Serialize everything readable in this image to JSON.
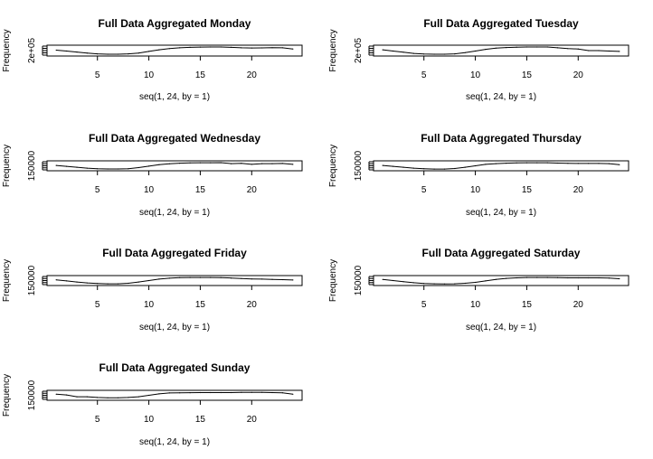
{
  "chart_data": [
    {
      "type": "line",
      "title": "Full Data Aggregated Monday",
      "xlabel": "seq(1, 24, by = 1)",
      "ylabel": "Frequency",
      "ytick_text": "2e+05",
      "xlim": [
        1,
        24
      ],
      "xticks": [
        5,
        10,
        15,
        20
      ],
      "x": [
        1,
        2,
        3,
        4,
        5,
        6,
        7,
        8,
        9,
        10,
        11,
        12,
        13,
        14,
        15,
        16,
        17,
        18,
        19,
        20,
        21,
        22,
        23,
        24
      ],
      "values": [
        0.55,
        0.45,
        0.32,
        0.2,
        0.1,
        0.05,
        0.05,
        0.1,
        0.2,
        0.4,
        0.6,
        0.75,
        0.85,
        0.9,
        0.93,
        0.95,
        0.95,
        0.9,
        0.85,
        0.82,
        0.83,
        0.86,
        0.85,
        0.7
      ]
    },
    {
      "type": "line",
      "title": "Full Data Aggregated Tuesday",
      "xlabel": "seq(1, 24, by = 1)",
      "ylabel": "Frequency",
      "ytick_text": "2e+05",
      "xlim": [
        1,
        24
      ],
      "xticks": [
        5,
        10,
        15,
        20
      ],
      "x": [
        1,
        2,
        3,
        4,
        5,
        6,
        7,
        8,
        9,
        10,
        11,
        12,
        13,
        14,
        15,
        16,
        17,
        18,
        19,
        20,
        21,
        22,
        23,
        24
      ],
      "values": [
        0.6,
        0.45,
        0.3,
        0.15,
        0.08,
        0.05,
        0.05,
        0.1,
        0.25,
        0.45,
        0.65,
        0.8,
        0.88,
        0.92,
        0.95,
        0.95,
        0.95,
        0.85,
        0.75,
        0.7,
        0.5,
        0.5,
        0.45,
        0.4
      ]
    },
    {
      "type": "line",
      "title": "Full Data Aggregated Wednesday",
      "xlabel": "seq(1, 24, by = 1)",
      "ylabel": "Frequency",
      "ytick_text": "150000",
      "xlim": [
        1,
        24
      ],
      "xticks": [
        5,
        10,
        15,
        20
      ],
      "x": [
        1,
        2,
        3,
        4,
        5,
        6,
        7,
        8,
        9,
        10,
        11,
        12,
        13,
        14,
        15,
        16,
        17,
        18,
        19,
        20,
        21,
        22,
        23,
        24
      ],
      "values": [
        0.55,
        0.42,
        0.3,
        0.18,
        0.1,
        0.06,
        0.06,
        0.1,
        0.25,
        0.45,
        0.65,
        0.78,
        0.86,
        0.9,
        0.92,
        0.93,
        0.94,
        0.8,
        0.85,
        0.7,
        0.8,
        0.8,
        0.82,
        0.7
      ]
    },
    {
      "type": "line",
      "title": "Full Data Aggregated Thursday",
      "xlabel": "seq(1, 24, by = 1)",
      "ylabel": "Frequency",
      "ytick_text": "150000",
      "xlim": [
        1,
        24
      ],
      "xticks": [
        5,
        10,
        15,
        20
      ],
      "x": [
        1,
        2,
        3,
        4,
        5,
        6,
        7,
        8,
        9,
        10,
        11,
        12,
        13,
        14,
        15,
        16,
        17,
        18,
        19,
        20,
        21,
        22,
        23,
        24
      ],
      "values": [
        0.55,
        0.42,
        0.3,
        0.18,
        0.1,
        0.05,
        0.05,
        0.12,
        0.3,
        0.5,
        0.7,
        0.8,
        0.86,
        0.9,
        0.92,
        0.93,
        0.92,
        0.88,
        0.85,
        0.83,
        0.82,
        0.82,
        0.8,
        0.65
      ]
    },
    {
      "type": "line",
      "title": "Full Data Aggregated Friday",
      "xlabel": "seq(1, 24, by = 1)",
      "ylabel": "Frequency",
      "ytick_text": "150000",
      "xlim": [
        1,
        24
      ],
      "xticks": [
        5,
        10,
        15,
        20
      ],
      "x": [
        1,
        2,
        3,
        4,
        5,
        6,
        7,
        8,
        9,
        10,
        11,
        12,
        13,
        14,
        15,
        16,
        17,
        18,
        19,
        20,
        21,
        22,
        23,
        24
      ],
      "values": [
        0.6,
        0.45,
        0.3,
        0.18,
        0.1,
        0.05,
        0.05,
        0.12,
        0.3,
        0.5,
        0.7,
        0.82,
        0.9,
        0.93,
        0.93,
        0.93,
        0.9,
        0.85,
        0.78,
        0.72,
        0.7,
        0.66,
        0.62,
        0.58
      ]
    },
    {
      "type": "line",
      "title": "Full Data Aggregated Saturday",
      "xlabel": "seq(1, 24, by = 1)",
      "ylabel": "Frequency",
      "ytick_text": "150000",
      "xlim": [
        1,
        24
      ],
      "xticks": [
        5,
        10,
        15,
        20
      ],
      "x": [
        1,
        2,
        3,
        4,
        5,
        6,
        7,
        8,
        9,
        10,
        11,
        12,
        13,
        14,
        15,
        16,
        17,
        18,
        19,
        20,
        21,
        22,
        23,
        24
      ],
      "values": [
        0.65,
        0.5,
        0.35,
        0.2,
        0.1,
        0.05,
        0.03,
        0.05,
        0.12,
        0.25,
        0.45,
        0.65,
        0.8,
        0.88,
        0.92,
        0.93,
        0.92,
        0.9,
        0.88,
        0.88,
        0.88,
        0.88,
        0.85,
        0.75
      ]
    },
    {
      "type": "line",
      "title": "Full Data Aggregated Sunday",
      "xlabel": "seq(1, 24, by = 1)",
      "ylabel": "Frequency",
      "ytick_text": "150000",
      "xlim": [
        1,
        24
      ],
      "xticks": [
        5,
        10,
        15,
        20
      ],
      "x": [
        1,
        2,
        3,
        4,
        5,
        6,
        7,
        8,
        9,
        10,
        11,
        12,
        13,
        14,
        15,
        16,
        17,
        18,
        19,
        20,
        21,
        22,
        23,
        24
      ],
      "values": [
        0.65,
        0.55,
        0.3,
        0.3,
        0.2,
        0.15,
        0.15,
        0.2,
        0.3,
        0.5,
        0.7,
        0.82,
        0.85,
        0.86,
        0.87,
        0.88,
        0.88,
        0.88,
        0.9,
        0.9,
        0.9,
        0.88,
        0.85,
        0.65
      ]
    }
  ]
}
